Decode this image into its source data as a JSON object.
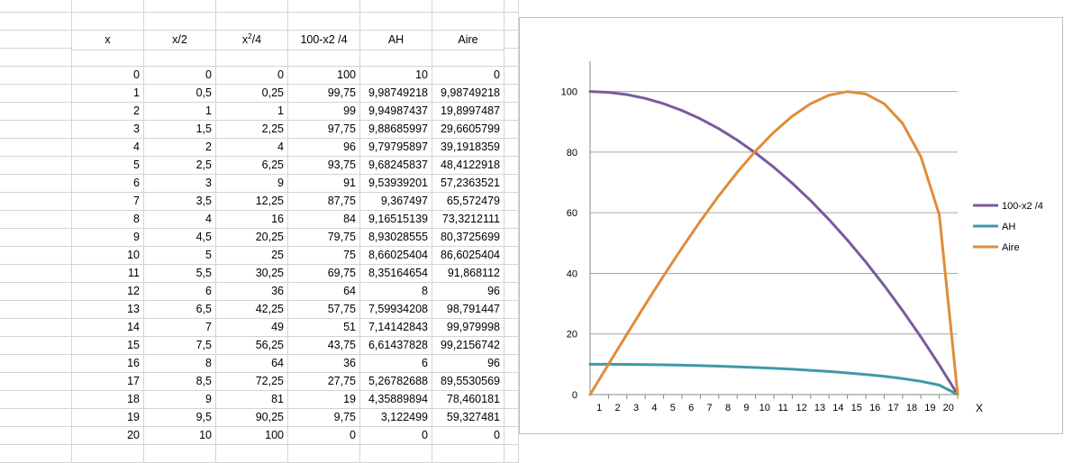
{
  "sheet": {
    "headers": [
      "x",
      "x/2",
      "x²/4",
      "100-x2 /4",
      "AH",
      "Aire"
    ],
    "rows": [
      [
        "0",
        "0",
        "0",
        "100",
        "10",
        "0"
      ],
      [
        "1",
        "0,5",
        "0,25",
        "99,75",
        "9,98749218",
        "9,98749218"
      ],
      [
        "2",
        "1",
        "1",
        "99",
        "9,94987437",
        "19,8997487"
      ],
      [
        "3",
        "1,5",
        "2,25",
        "97,75",
        "9,88685997",
        "29,6605799"
      ],
      [
        "4",
        "2",
        "4",
        "96",
        "9,79795897",
        "39,1918359"
      ],
      [
        "5",
        "2,5",
        "6,25",
        "93,75",
        "9,68245837",
        "48,4122918"
      ],
      [
        "6",
        "3",
        "9",
        "91",
        "9,53939201",
        "57,2363521"
      ],
      [
        "7",
        "3,5",
        "12,25",
        "87,75",
        "9,367497",
        "65,572479"
      ],
      [
        "8",
        "4",
        "16",
        "84",
        "9,16515139",
        "73,3212111"
      ],
      [
        "9",
        "4,5",
        "20,25",
        "79,75",
        "8,93028555",
        "80,3725699"
      ],
      [
        "10",
        "5",
        "25",
        "75",
        "8,66025404",
        "86,6025404"
      ],
      [
        "11",
        "5,5",
        "30,25",
        "69,75",
        "8,35164654",
        "91,868112"
      ],
      [
        "12",
        "6",
        "36",
        "64",
        "8",
        "96"
      ],
      [
        "13",
        "6,5",
        "42,25",
        "57,75",
        "7,59934208",
        "98,791447"
      ],
      [
        "14",
        "7",
        "49",
        "51",
        "7,14142843",
        "99,979998"
      ],
      [
        "15",
        "7,5",
        "56,25",
        "43,75",
        "6,61437828",
        "99,2156742"
      ],
      [
        "16",
        "8",
        "64",
        "36",
        "6",
        "96"
      ],
      [
        "17",
        "8,5",
        "72,25",
        "27,75",
        "5,26782688",
        "89,5530569"
      ],
      [
        "18",
        "9",
        "81",
        "19",
        "4,35889894",
        "78,460181"
      ],
      [
        "19",
        "9,5",
        "90,25",
        "9,75",
        "3,122499",
        "59,327481"
      ],
      [
        "20",
        "10",
        "100",
        "0",
        "0",
        "0"
      ]
    ]
  },
  "chart_data": {
    "type": "line",
    "title": "",
    "xlabel": "X",
    "ylabel": "",
    "x": [
      0,
      1,
      2,
      3,
      4,
      5,
      6,
      7,
      8,
      9,
      10,
      11,
      12,
      13,
      14,
      15,
      16,
      17,
      18,
      19,
      20
    ],
    "x_tick_labels": [
      "1",
      "2",
      "3",
      "4",
      "5",
      "6",
      "7",
      "8",
      "9",
      "10",
      "11",
      "12",
      "13",
      "14",
      "15",
      "16",
      "17",
      "18",
      "19",
      "20"
    ],
    "ylim": [
      0,
      110
    ],
    "y_ticks": [
      0,
      20,
      40,
      60,
      80,
      100
    ],
    "grid": "horizontal",
    "legend_position": "right",
    "series": [
      {
        "name": "100-x2 /4",
        "color": "#7a5a9e",
        "values": [
          100,
          99.75,
          99,
          97.75,
          96,
          93.75,
          91,
          87.75,
          84,
          79.75,
          75,
          69.75,
          64,
          57.75,
          51,
          43.75,
          36,
          27.75,
          19,
          9.75,
          0
        ]
      },
      {
        "name": "AH",
        "color": "#3e9aa8",
        "values": [
          10,
          9.98749218,
          9.94987437,
          9.88685997,
          9.79795897,
          9.68245837,
          9.53939201,
          9.367497,
          9.16515139,
          8.93028555,
          8.66025404,
          8.35164654,
          8,
          7.59934208,
          7.14142843,
          6.61437828,
          6,
          5.26782688,
          4.35889894,
          3.122499,
          0
        ]
      },
      {
        "name": "Aire",
        "color": "#e08c3a",
        "values": [
          0,
          9.98749218,
          19.8997487,
          29.6605799,
          39.1918359,
          48.4122918,
          57.2363521,
          65.572479,
          73.3212111,
          80.3725699,
          86.6025404,
          91.868112,
          96,
          98.791447,
          99.979998,
          99.2156742,
          96,
          89.5530569,
          78.460181,
          59.327481,
          0
        ]
      }
    ]
  }
}
